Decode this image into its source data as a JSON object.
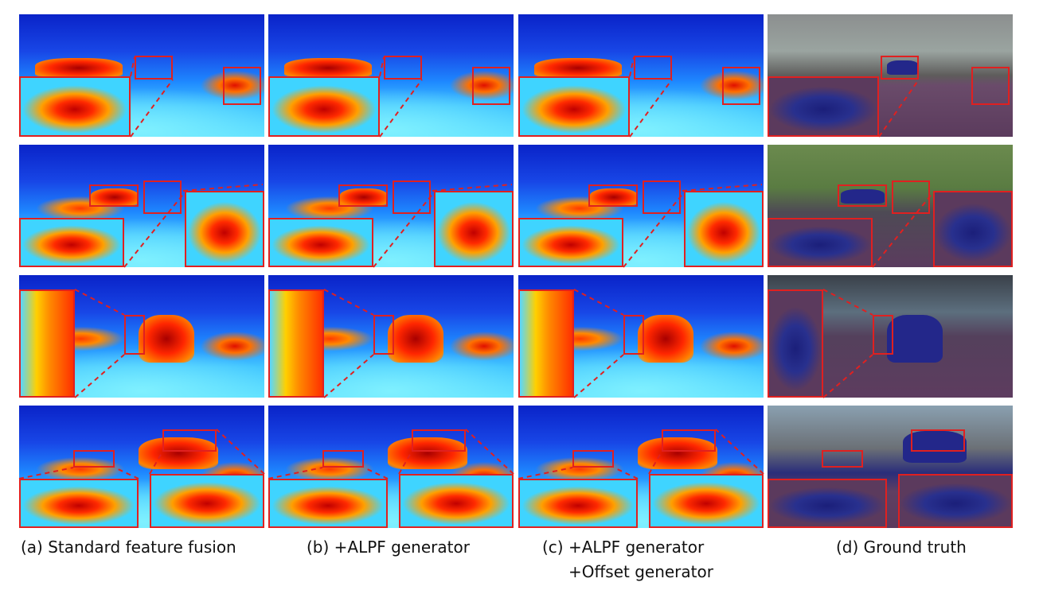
{
  "captions": {
    "a": "(a)  Standard feature fusion",
    "b": "(b) +ALPF generator",
    "c_line1": "(c) +ALPF generator",
    "c_line2": "+Offset generator",
    "d": "(d) Ground truth"
  },
  "colors": {
    "highlight_box": "#e02020",
    "heatmap_cold": "#0a23c8",
    "heatmap_hot": "#c00000",
    "gt_car": "#23278a",
    "gt_road": "#5b3a5d"
  }
}
